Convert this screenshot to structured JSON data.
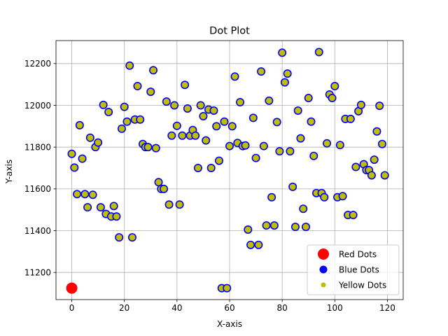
{
  "chart_data": {
    "type": "scatter",
    "title": "Dot Plot",
    "xlabel": "X-axis",
    "ylabel": "Y-axis",
    "xlim": [
      -6,
      126
    ],
    "ylim": [
      11070,
      12310
    ],
    "xticks": [
      0,
      20,
      40,
      60,
      80,
      100,
      120
    ],
    "yticks": [
      11200,
      11400,
      11600,
      11800,
      12000,
      12200
    ],
    "grid": true,
    "legend_position": "lower-right",
    "colors": {
      "red": "#ff0000",
      "blue": "#0000ff",
      "yellow": "#bfbf00"
    },
    "series": [
      {
        "name": "Red Dots",
        "style": "large red filled circle",
        "points": [
          [
            0,
            11125
          ]
        ]
      },
      {
        "name": "Blue Dots",
        "style": "blue circle outline",
        "points": "same as Yellow Dots"
      },
      {
        "name": "Yellow Dots",
        "style": "yellow-green filled circle",
        "points": [
          [
            0,
            11768
          ],
          [
            1,
            11702
          ],
          [
            2,
            11575
          ],
          [
            3,
            11905
          ],
          [
            4,
            11745
          ],
          [
            5,
            11575
          ],
          [
            6,
            11512
          ],
          [
            7,
            11845
          ],
          [
            8,
            11572
          ],
          [
            9,
            11800
          ],
          [
            10,
            11822
          ],
          [
            11,
            11512
          ],
          [
            12,
            12002
          ],
          [
            13,
            11480
          ],
          [
            14,
            11968
          ],
          [
            15,
            11468
          ],
          [
            16,
            11518
          ],
          [
            17,
            11468
          ],
          [
            18,
            11368
          ],
          [
            19,
            11888
          ],
          [
            20,
            11993
          ],
          [
            21,
            11922
          ],
          [
            22,
            12190
          ],
          [
            23,
            11368
          ],
          [
            24,
            11932
          ],
          [
            25,
            12092
          ],
          [
            26,
            11932
          ],
          [
            27,
            11815
          ],
          [
            28,
            11800
          ],
          [
            29,
            11800
          ],
          [
            30,
            12065
          ],
          [
            31,
            12168
          ],
          [
            32,
            11795
          ],
          [
            33,
            11632
          ],
          [
            34,
            11600
          ],
          [
            35,
            11600
          ],
          [
            36,
            12018
          ],
          [
            37,
            11525
          ],
          [
            38,
            11855
          ],
          [
            39,
            12000
          ],
          [
            40,
            11902
          ],
          [
            41,
            11525
          ],
          [
            42,
            11855
          ],
          [
            43,
            12098
          ],
          [
            44,
            11985
          ],
          [
            45,
            11855
          ],
          [
            46,
            11882
          ],
          [
            47,
            11855
          ],
          [
            48,
            11700
          ],
          [
            49,
            12000
          ],
          [
            50,
            11948
          ],
          [
            51,
            11832
          ],
          [
            52,
            11980
          ],
          [
            53,
            11700
          ],
          [
            54,
            11975
          ],
          [
            55,
            11900
          ],
          [
            56,
            11735
          ],
          [
            57,
            11125
          ],
          [
            58,
            11922
          ],
          [
            59,
            11125
          ],
          [
            60,
            11805
          ],
          [
            61,
            11900
          ],
          [
            62,
            12138
          ],
          [
            63,
            11820
          ],
          [
            64,
            12015
          ],
          [
            65,
            11805
          ],
          [
            66,
            11808
          ],
          [
            67,
            11405
          ],
          [
            68,
            11332
          ],
          [
            69,
            11940
          ],
          [
            70,
            11748
          ],
          [
            71,
            11332
          ],
          [
            72,
            12162
          ],
          [
            73,
            11805
          ],
          [
            74,
            11425
          ],
          [
            75,
            12022
          ],
          [
            76,
            11560
          ],
          [
            77,
            11425
          ],
          [
            78,
            11920
          ],
          [
            79,
            11780
          ],
          [
            80,
            12252
          ],
          [
            81,
            12110
          ],
          [
            82,
            12152
          ],
          [
            83,
            11780
          ],
          [
            84,
            11610
          ],
          [
            85,
            11418
          ],
          [
            86,
            11975
          ],
          [
            87,
            11842
          ],
          [
            88,
            11505
          ],
          [
            89,
            11418
          ],
          [
            90,
            12035
          ],
          [
            91,
            11922
          ],
          [
            92,
            11758
          ],
          [
            93,
            11580
          ],
          [
            94,
            12255
          ],
          [
            95,
            11580
          ],
          [
            96,
            11560
          ],
          [
            97,
            11818
          ],
          [
            98,
            12052
          ],
          [
            99,
            12035
          ],
          [
            100,
            12092
          ],
          [
            101,
            11560
          ],
          [
            102,
            11810
          ],
          [
            103,
            11565
          ],
          [
            104,
            11935
          ],
          [
            105,
            11475
          ],
          [
            106,
            11935
          ],
          [
            107,
            11475
          ],
          [
            108,
            11705
          ],
          [
            109,
            11972
          ],
          [
            110,
            12002
          ],
          [
            111,
            11718
          ],
          [
            112,
            11690
          ],
          [
            113,
            11690
          ],
          [
            114,
            11665
          ],
          [
            115,
            11740
          ],
          [
            116,
            11875
          ],
          [
            117,
            11998
          ],
          [
            118,
            11815
          ],
          [
            119,
            11665
          ]
        ]
      }
    ]
  }
}
